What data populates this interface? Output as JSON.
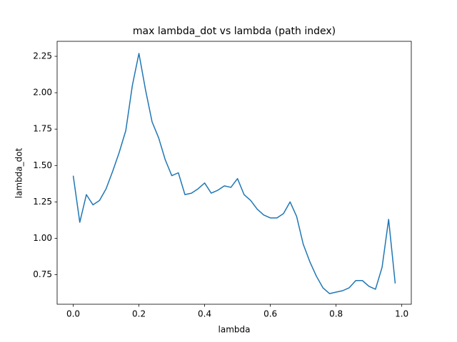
{
  "chart_data": {
    "type": "line",
    "title": "max lambda_dot vs lambda (path index)",
    "x_label": "lambda",
    "y_label": "lambda_dot",
    "x": [
      0,
      0.02,
      0.04,
      0.06,
      0.08,
      0.1,
      0.12,
      0.14,
      0.16,
      0.18,
      0.2,
      0.22,
      0.24,
      0.26,
      0.28,
      0.3,
      0.32,
      0.34,
      0.36,
      0.38,
      0.4,
      0.42,
      0.44,
      0.46,
      0.48,
      0.5,
      0.52,
      0.54,
      0.56,
      0.58,
      0.6,
      0.62,
      0.64,
      0.66,
      0.68,
      0.7,
      0.72,
      0.74,
      0.76,
      0.78,
      0.8,
      0.82,
      0.84,
      0.86,
      0.88,
      0.9,
      0.92,
      0.94,
      0.96,
      0.98
    ],
    "series": [
      {
        "color": "#1f77b4",
        "values": [
          1.43,
          1.11,
          1.3,
          1.23,
          1.26,
          1.34,
          1.46,
          1.59,
          1.74,
          2.05,
          2.27,
          2.02,
          1.8,
          1.69,
          1.54,
          1.43,
          1.45,
          1.3,
          1.31,
          1.34,
          1.38,
          1.31,
          1.33,
          1.36,
          1.35,
          1.41,
          1.3,
          1.26,
          1.2,
          1.16,
          1.14,
          1.14,
          1.17,
          1.25,
          1.15,
          0.96,
          0.84,
          0.74,
          0.66,
          0.62,
          0.63,
          0.64,
          0.66,
          0.71,
          0.71,
          0.67,
          0.65,
          0.8,
          1.13,
          0.69
        ]
      }
    ],
    "xlim": [
      -0.049,
      1.029
    ],
    "ylim": [
      0.547,
      2.353
    ],
    "xticks": [
      {
        "value": 0,
        "label": "0.0"
      },
      0.2,
      0.4,
      0.6,
      0.8,
      {
        "value": 1,
        "label": "1.0"
      }
    ],
    "yticks": [
      0.75,
      {
        "value": 1,
        "label": "1.00"
      },
      1.25,
      {
        "value": 1.5,
        "label": "1.50"
      },
      1.75,
      {
        "value": 2,
        "label": "2.00"
      },
      2.25
    ],
    "grid": false
  }
}
